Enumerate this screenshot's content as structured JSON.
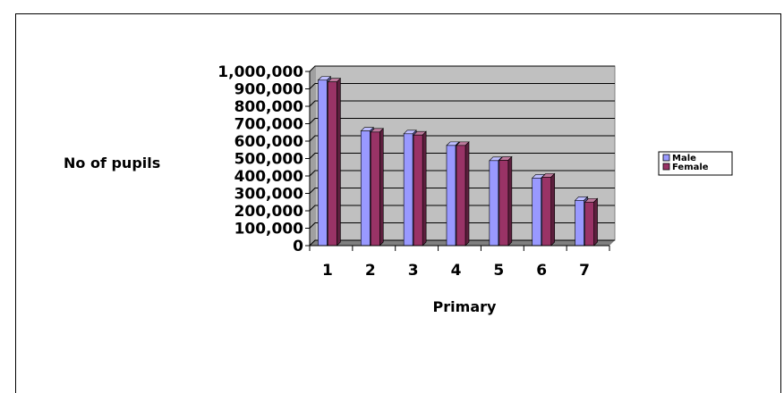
{
  "chart_data": {
    "type": "bar",
    "categories": [
      "1",
      "2",
      "3",
      "4",
      "5",
      "6",
      "7"
    ],
    "series": [
      {
        "name": "Male",
        "values": [
          950000,
          658000,
          642000,
          575000,
          488000,
          388000,
          260000
        ],
        "color": "#9999ff"
      },
      {
        "name": "Female",
        "values": [
          940000,
          652000,
          635000,
          575000,
          490000,
          393000,
          250000
        ],
        "color": "#993366"
      }
    ],
    "xlabel": "Primary",
    "ylabel": "No of pupils",
    "ylim": [
      0,
      1000000
    ],
    "yticks": [
      "0",
      "100,000",
      "200,000",
      "300,000",
      "400,000",
      "500,000",
      "600,000",
      "700,000",
      "800,000",
      "900,000",
      "1,000,000"
    ],
    "grid": true,
    "legend": "right",
    "plot_background": "#c0c0c0",
    "style": "3d-clustered-column"
  }
}
